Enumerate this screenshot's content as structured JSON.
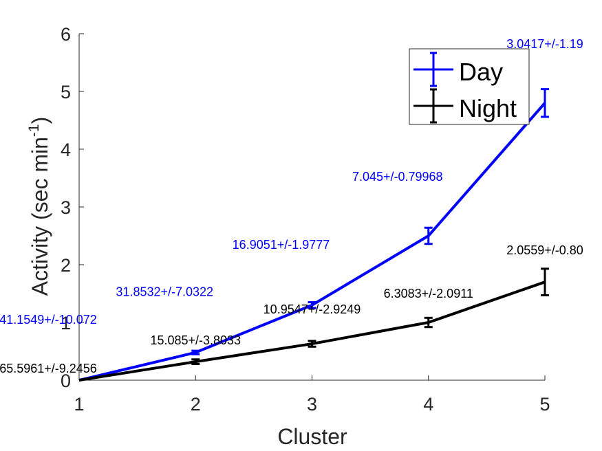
{
  "chart_data": {
    "type": "line",
    "xlabel": "Cluster",
    "ylabel": "Activity (sec min",
    "ylabel_superscript": "-1",
    "ylabel_close": ")",
    "xlim": [
      1,
      5
    ],
    "ylim": [
      0,
      6
    ],
    "x_ticks": [
      "1",
      "2",
      "3",
      "4",
      "5"
    ],
    "y_ticks": [
      "0",
      "1",
      "2",
      "3",
      "4",
      "5",
      "6"
    ],
    "grid": false,
    "legend_position": "top-right",
    "x": [
      1,
      2,
      3,
      4,
      5
    ],
    "series": [
      {
        "name": "Day",
        "color": "#0000ff",
        "values": [
          0.0,
          0.48,
          1.3,
          2.5,
          4.8
        ],
        "errors": [
          0.0,
          0.03,
          0.05,
          0.14,
          0.24
        ],
        "labels": [
          "41.1549+/-10.072",
          "31.8532+/-7.0322",
          "16.9051+/-1.9777",
          "7.045+/-0.79968",
          "3.0417+/-1.19"
        ]
      },
      {
        "name": "Night",
        "color": "#000000",
        "values": [
          0.0,
          0.32,
          0.63,
          1.0,
          1.7
        ],
        "errors": [
          0.0,
          0.04,
          0.05,
          0.08,
          0.23
        ],
        "labels": [
          "65.5961+/-9.2456",
          "15.085+/-3.8033",
          "10.9547+/-2.9249",
          "6.3083+/-2.0911",
          "2.0559+/-0.80"
        ]
      }
    ]
  }
}
